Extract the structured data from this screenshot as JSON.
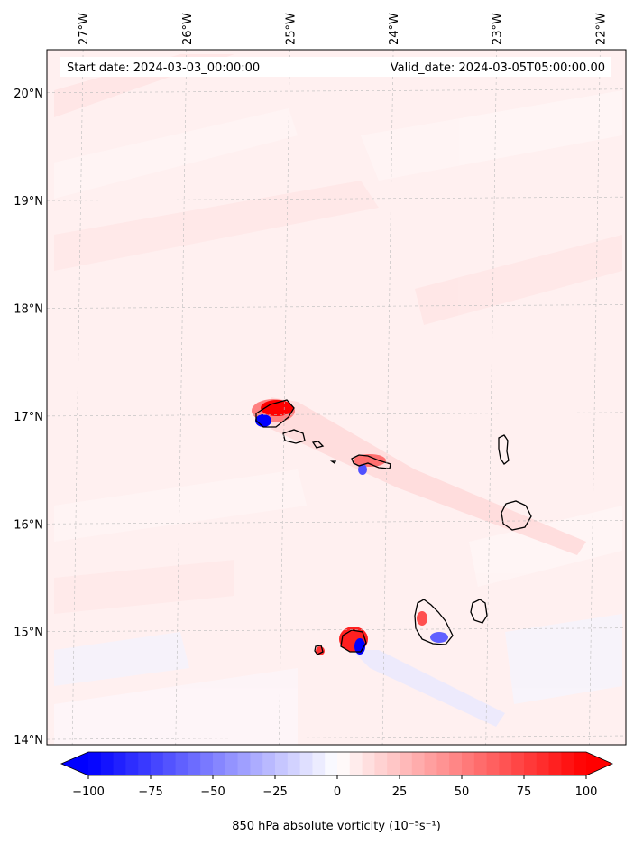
{
  "header": {
    "start_date": "Start date: 2024-03-03_00:00:00",
    "valid_date": "Valid_date: 2024-03-05T05:00:00.00"
  },
  "map": {
    "lon_ticks": [
      {
        "value": -27,
        "label": "27°W"
      },
      {
        "value": -26,
        "label": "26°W"
      },
      {
        "value": -25,
        "label": "25°W"
      },
      {
        "value": -24,
        "label": "24°W"
      },
      {
        "value": -23,
        "label": "23°W"
      },
      {
        "value": -22,
        "label": "22°W"
      }
    ],
    "lat_ticks": [
      {
        "value": 20,
        "label": "20°N"
      },
      {
        "value": 19,
        "label": "19°N"
      },
      {
        "value": 18,
        "label": "18°N"
      },
      {
        "value": 17,
        "label": "17°N"
      },
      {
        "value": 16,
        "label": "16°N"
      },
      {
        "value": 15,
        "label": "15°N"
      },
      {
        "value": 14,
        "label": "14°N"
      }
    ],
    "lon_range": [
      -27.35,
      -21.75
    ],
    "lat_range": [
      13.95,
      20.4
    ],
    "gridlines": true
  },
  "colorbar": {
    "label": "850 hPa absolute vorticity (10⁻⁵s⁻¹)",
    "ticks": [
      {
        "value": -100,
        "label": "−100"
      },
      {
        "value": -75,
        "label": "−75"
      },
      {
        "value": -50,
        "label": "−50"
      },
      {
        "value": -25,
        "label": "−25"
      },
      {
        "value": 0,
        "label": "0"
      },
      {
        "value": 25,
        "label": "25"
      },
      {
        "value": 50,
        "label": "50"
      },
      {
        "value": 75,
        "label": "75"
      },
      {
        "value": 100,
        "label": "100"
      }
    ],
    "range": [
      -100,
      100
    ],
    "min_color": "#0000ff",
    "max_color": "#ff0000",
    "extend": "both"
  },
  "colors": {
    "background_field": "#fff0f0",
    "coastline": "#000000",
    "gridline": "#bbbbbb"
  }
}
